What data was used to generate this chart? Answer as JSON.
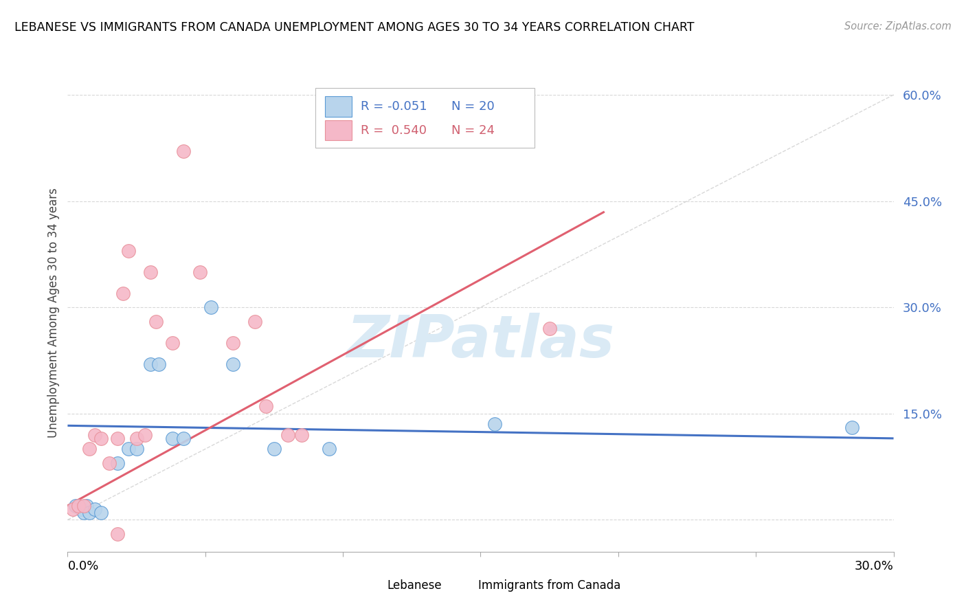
{
  "title": "LEBANESE VS IMMIGRANTS FROM CANADA UNEMPLOYMENT AMONG AGES 30 TO 34 YEARS CORRELATION CHART",
  "source": "Source: ZipAtlas.com",
  "ylabel": "Unemployment Among Ages 30 to 34 years",
  "yticks": [
    0.0,
    0.15,
    0.3,
    0.45,
    0.6
  ],
  "ytick_labels": [
    "",
    "15.0%",
    "30.0%",
    "45.0%",
    "60.0%"
  ],
  "xlim": [
    0.0,
    0.3
  ],
  "ylim": [
    -0.045,
    0.63
  ],
  "legend_r_blue": "-0.051",
  "legend_n_blue": "20",
  "legend_r_pink": "0.540",
  "legend_n_pink": "24",
  "color_blue_fill": "#b8d4ec",
  "color_pink_fill": "#f5b8c8",
  "color_blue_edge": "#5b9bd5",
  "color_pink_edge": "#e8909a",
  "color_blue_line": "#4472c4",
  "color_pink_line": "#e06070",
  "color_gray_dash": "#c8c8c8",
  "color_legend_blue": "#4472c4",
  "color_legend_pink": "#d06070",
  "color_axis_blue": "#4472c4",
  "watermark_color": "#daeaf5",
  "blue_points": [
    [
      0.003,
      0.02
    ],
    [
      0.005,
      0.015
    ],
    [
      0.006,
      0.01
    ],
    [
      0.007,
      0.02
    ],
    [
      0.008,
      0.01
    ],
    [
      0.01,
      0.015
    ],
    [
      0.012,
      0.01
    ],
    [
      0.018,
      0.08
    ],
    [
      0.022,
      0.1
    ],
    [
      0.025,
      0.1
    ],
    [
      0.03,
      0.22
    ],
    [
      0.033,
      0.22
    ],
    [
      0.038,
      0.115
    ],
    [
      0.042,
      0.115
    ],
    [
      0.052,
      0.3
    ],
    [
      0.06,
      0.22
    ],
    [
      0.075,
      0.1
    ],
    [
      0.095,
      0.1
    ],
    [
      0.155,
      0.135
    ],
    [
      0.285,
      0.13
    ]
  ],
  "pink_points": [
    [
      0.002,
      0.015
    ],
    [
      0.004,
      0.02
    ],
    [
      0.006,
      0.02
    ],
    [
      0.008,
      0.1
    ],
    [
      0.01,
      0.12
    ],
    [
      0.012,
      0.115
    ],
    [
      0.015,
      0.08
    ],
    [
      0.018,
      0.115
    ],
    [
      0.02,
      0.32
    ],
    [
      0.022,
      0.38
    ],
    [
      0.025,
      0.115
    ],
    [
      0.028,
      0.12
    ],
    [
      0.03,
      0.35
    ],
    [
      0.032,
      0.28
    ],
    [
      0.038,
      0.25
    ],
    [
      0.042,
      0.52
    ],
    [
      0.048,
      0.35
    ],
    [
      0.06,
      0.25
    ],
    [
      0.068,
      0.28
    ],
    [
      0.072,
      0.16
    ],
    [
      0.08,
      0.12
    ],
    [
      0.085,
      0.12
    ],
    [
      0.175,
      0.27
    ],
    [
      0.018,
      -0.02
    ]
  ],
  "blue_line_x": [
    0.0,
    0.3
  ],
  "blue_line_y": [
    0.133,
    0.115
  ],
  "pink_line_x": [
    0.0,
    0.195
  ],
  "pink_line_y": [
    0.02,
    0.435
  ],
  "diag_line_x": [
    0.0,
    0.3
  ],
  "diag_line_y": [
    0.0,
    0.6
  ]
}
